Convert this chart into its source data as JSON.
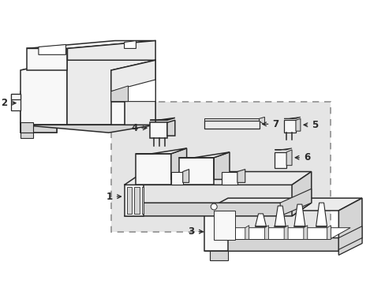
{
  "background_color": "#ffffff",
  "line_color": "#2a2a2a",
  "line_width": 1.1,
  "label_fontsize": 8.5,
  "panel_fill": "#e8e8e8",
  "face_light": "#f8f8f8",
  "face_mid": "#ebebeb",
  "face_dark": "#d5d5d5"
}
